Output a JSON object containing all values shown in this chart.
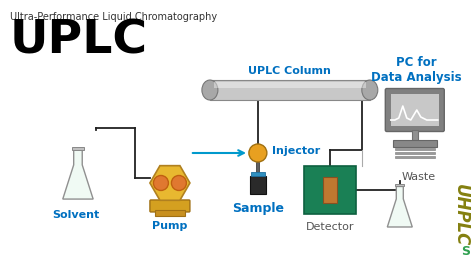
{
  "title_small": "Ultra-Performance Liquid Chromatography",
  "title_large": "UPLC",
  "bg_color": "#ffffff",
  "labels": {
    "uplc_column": "UPLC Column",
    "injector": "Injector",
    "solvent": "Solvent",
    "pump": "Pump",
    "sample": "Sample",
    "detector": "Detector",
    "waste": "Waste",
    "pc": "PC for\nData Analysis"
  },
  "label_color_blue": "#0070C0",
  "label_color_dark": "#555555",
  "label_color_black": "#000000",
  "colors": {
    "green_liquid": "#2DBF7A",
    "pump_body_top": "#E8B830",
    "pump_body_bot": "#C89020",
    "pump_circles": "#E07830",
    "pump_base": "#D4A020",
    "column_body": "#C8C8C8",
    "column_caps": "#A8A8A8",
    "injector_ball": "#E8A020",
    "sample_vial": "#303030",
    "detector_body": "#1A8055",
    "detector_window": "#C07830",
    "pc_screen_outer": "#909090",
    "pc_screen_inner": "#D0D0D0",
    "pc_base": "#909090",
    "line_color": "#222222",
    "arrow_color": "#0099CC",
    "flask_glass": "#F0FAF4",
    "flask_border": "#909090",
    "logo_olive": "#848010",
    "logo_green": "#30A050",
    "injector_plate": "#3090C0"
  },
  "figsize": [
    4.74,
    2.79
  ],
  "dpi": 100
}
